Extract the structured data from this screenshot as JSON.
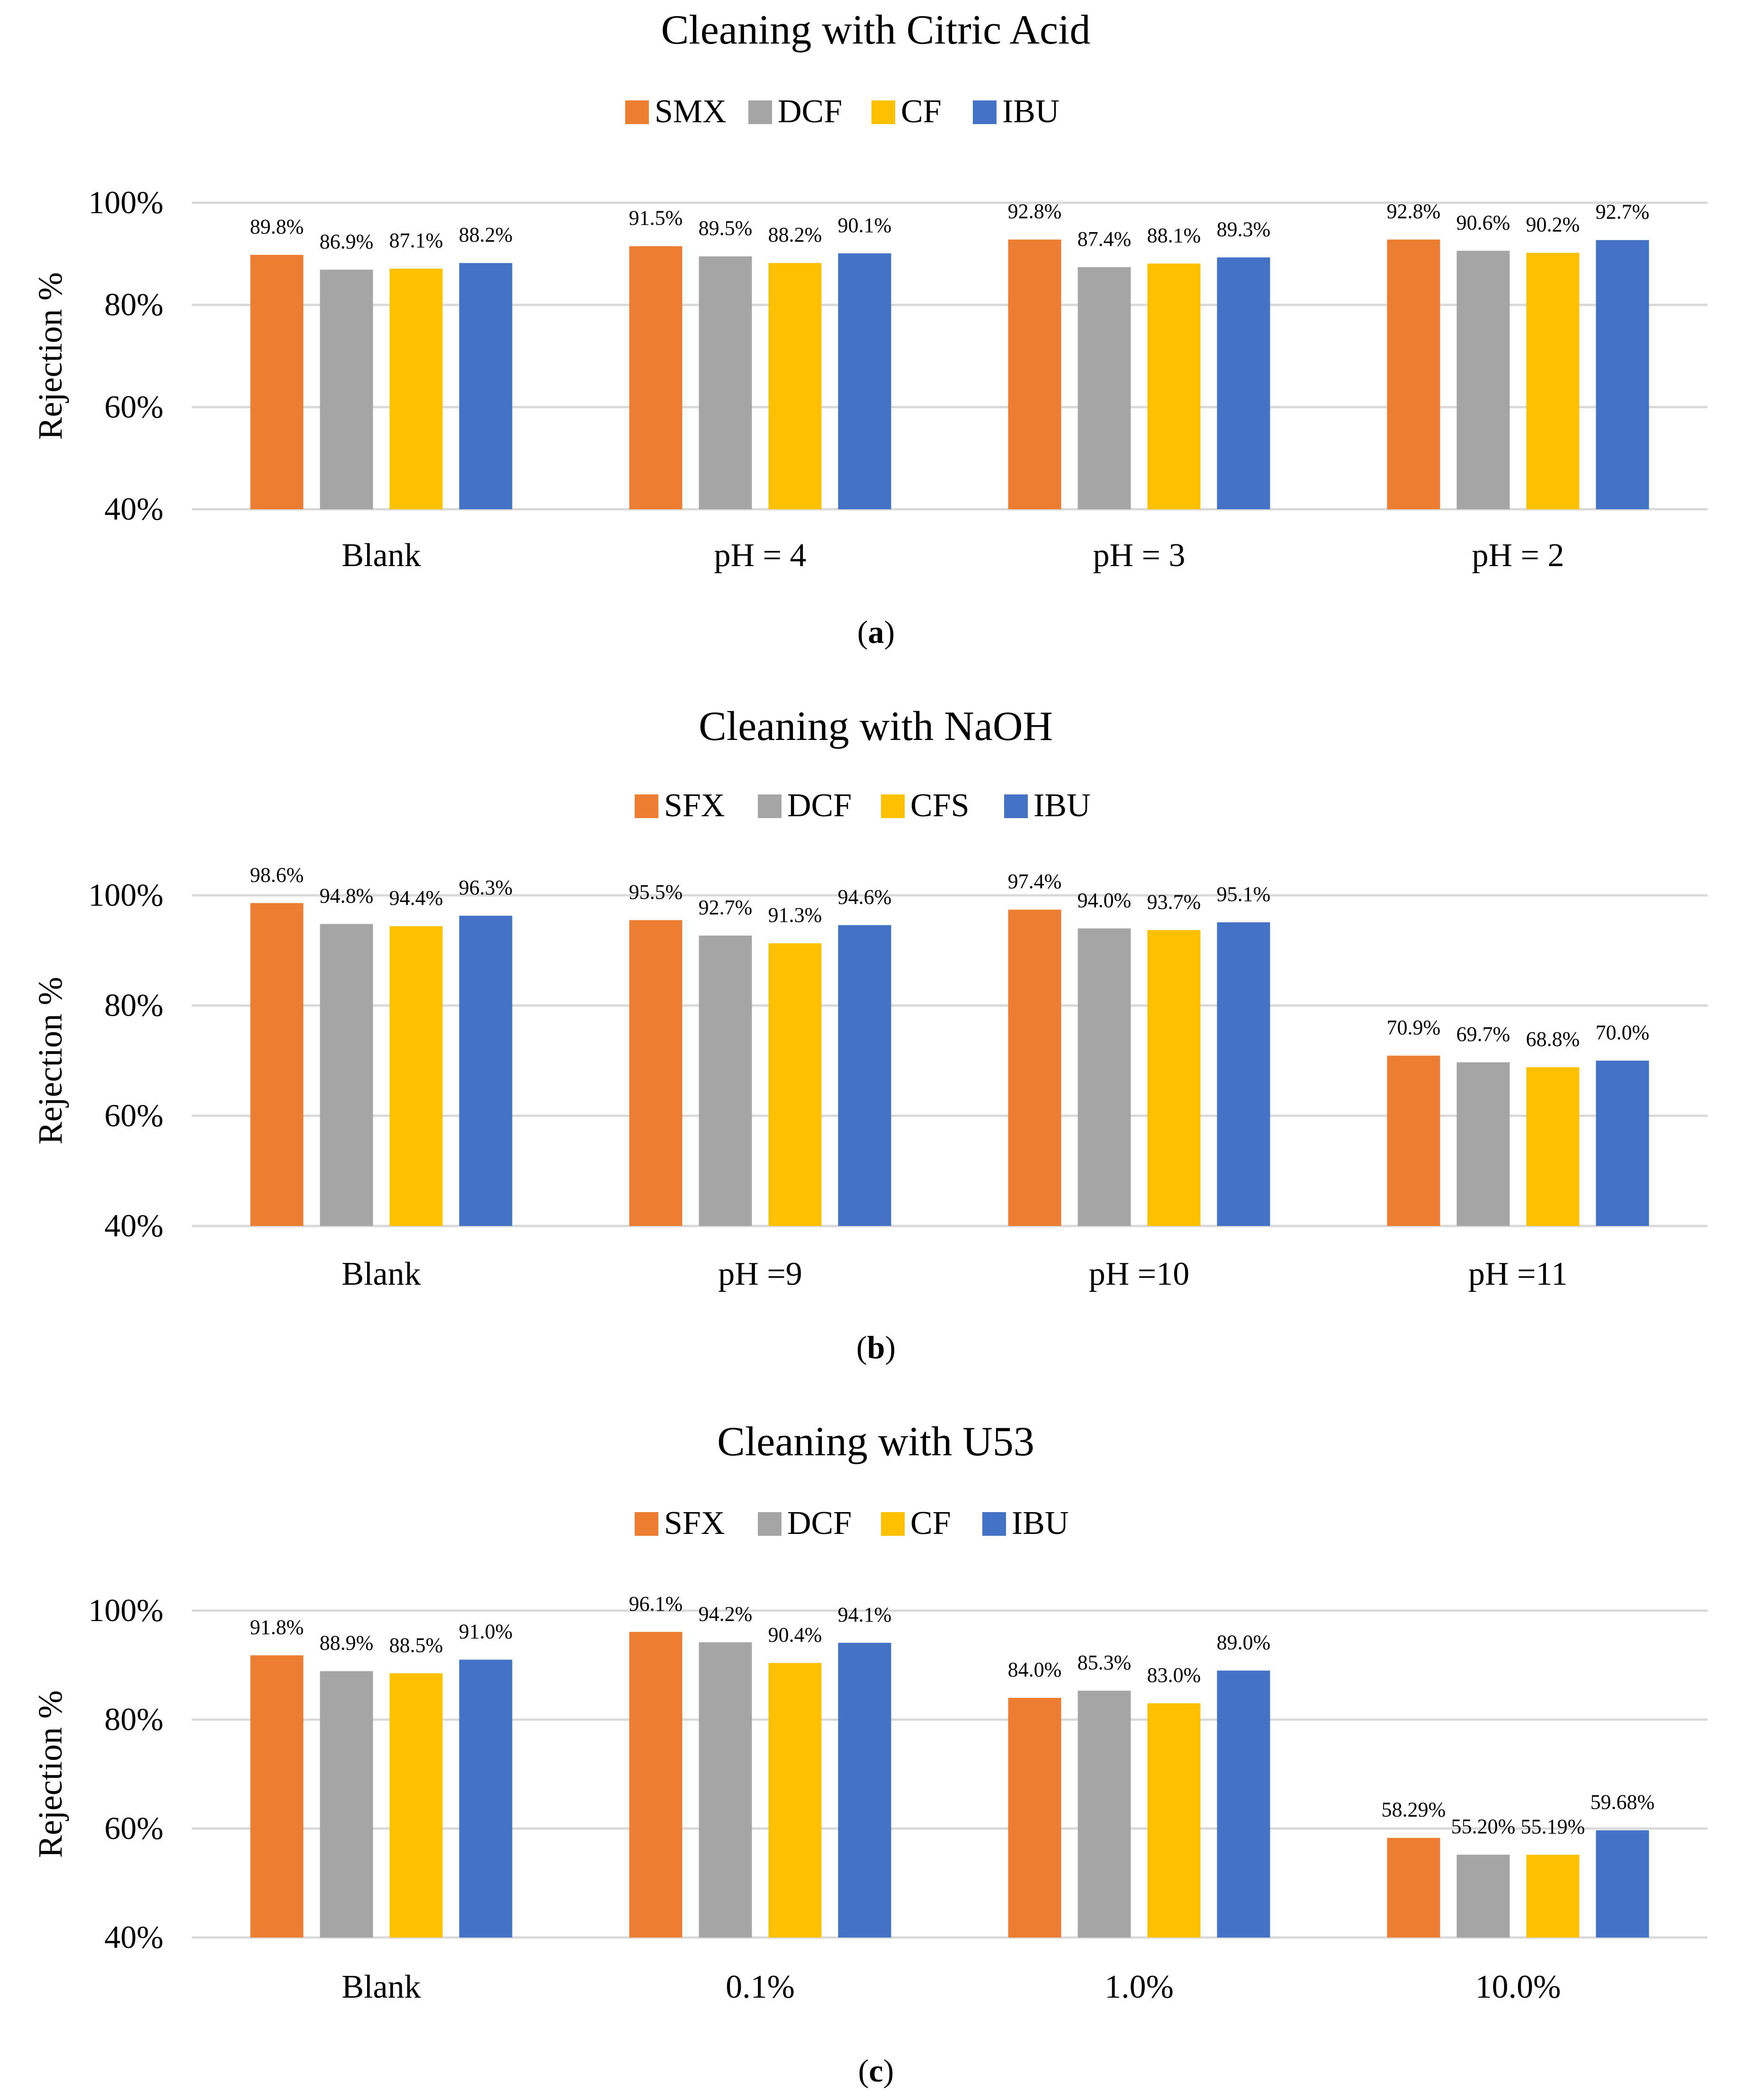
{
  "chart_data": [
    {
      "type": "bar",
      "title": "Cleaning with Citric Acid",
      "ylabel": "Rejection %",
      "ylim": [
        40,
        100
      ],
      "yticks": [
        40,
        60,
        80,
        100
      ],
      "ytick_labels": [
        "40%",
        "60%",
        "80%",
        "100%"
      ],
      "grid": true,
      "legend_position": "top",
      "categories": [
        "Blank",
        "pH = 4",
        "pH = 3",
        "pH = 2"
      ],
      "series": [
        {
          "name": "SMX",
          "color": "#ED7D31",
          "values": [
            89.8,
            91.5,
            92.8,
            92.8
          ],
          "labels": [
            "89.8%",
            "91.5%",
            "92.8%",
            "92.8%"
          ]
        },
        {
          "name": "DCF",
          "color": "#A5A5A5",
          "values": [
            86.9,
            89.5,
            87.4,
            90.6
          ],
          "labels": [
            "86.9%",
            "89.5%",
            "87.4%",
            "90.6%"
          ]
        },
        {
          "name": "CF",
          "color": "#FFC000",
          "values": [
            87.1,
            88.2,
            88.1,
            90.2
          ],
          "labels": [
            "87.1%",
            "88.2%",
            "88.1%",
            "90.2%"
          ]
        },
        {
          "name": "IBU",
          "color": "#4472C4",
          "values": [
            88.2,
            90.1,
            89.3,
            92.7
          ],
          "labels": [
            "88.2%",
            "90.1%",
            "89.3%",
            "92.7%"
          ]
        }
      ],
      "caption": "a"
    },
    {
      "type": "bar",
      "title": "Cleaning with NaOH",
      "ylabel": "Rejection %",
      "ylim": [
        40,
        100
      ],
      "yticks": [
        40,
        60,
        80,
        100
      ],
      "ytick_labels": [
        "40%",
        "60%",
        "80%",
        "100%"
      ],
      "grid": true,
      "legend_position": "top",
      "categories": [
        "Blank",
        "pH =9",
        "pH =10",
        "pH =11"
      ],
      "series": [
        {
          "name": "SFX",
          "color": "#ED7D31",
          "values": [
            98.6,
            95.5,
            97.4,
            70.9
          ],
          "labels": [
            "98.6%",
            "95.5%",
            "97.4%",
            "70.9%"
          ]
        },
        {
          "name": "DCF",
          "color": "#A5A5A5",
          "values": [
            94.8,
            92.7,
            94.0,
            69.7
          ],
          "labels": [
            "94.8%",
            "92.7%",
            "94.0%",
            "69.7%"
          ]
        },
        {
          "name": "CFS",
          "color": "#FFC000",
          "values": [
            94.4,
            91.3,
            93.7,
            68.8
          ],
          "labels": [
            "94.4%",
            "91.3%",
            "93.7%",
            "68.8%"
          ]
        },
        {
          "name": "IBU",
          "color": "#4472C4",
          "values": [
            96.3,
            94.6,
            95.1,
            70.0
          ],
          "labels": [
            "96.3%",
            "94.6%",
            "95.1%",
            "70.0%"
          ]
        }
      ],
      "caption": "b"
    },
    {
      "type": "bar",
      "title": "Cleaning with U53",
      "ylabel": "Rejection %",
      "ylim": [
        40,
        100
      ],
      "yticks": [
        40,
        60,
        80,
        100
      ],
      "ytick_labels": [
        "40%",
        "60%",
        "80%",
        "100%"
      ],
      "grid": true,
      "legend_position": "top",
      "categories": [
        "Blank",
        "0.1%",
        "1.0%",
        "10.0%"
      ],
      "series": [
        {
          "name": "SFX",
          "color": "#ED7D31",
          "values": [
            91.8,
            96.1,
            84.0,
            58.29
          ],
          "labels": [
            "91.8%",
            "96.1%",
            "84.0%",
            "58.29%"
          ]
        },
        {
          "name": "DCF",
          "color": "#A5A5A5",
          "values": [
            88.9,
            94.2,
            85.3,
            55.2
          ],
          "labels": [
            "88.9%",
            "94.2%",
            "85.3%",
            "55.20%"
          ]
        },
        {
          "name": "CF",
          "color": "#FFC000",
          "values": [
            88.5,
            90.4,
            83.0,
            55.19
          ],
          "labels": [
            "88.5%",
            "90.4%",
            "83.0%",
            "55.19%"
          ]
        },
        {
          "name": "IBU",
          "color": "#4472C4",
          "values": [
            91.0,
            94.1,
            89.0,
            59.68
          ],
          "labels": [
            "91.0%",
            "94.1%",
            "89.0%",
            "59.68%"
          ]
        }
      ],
      "caption": "c"
    }
  ]
}
